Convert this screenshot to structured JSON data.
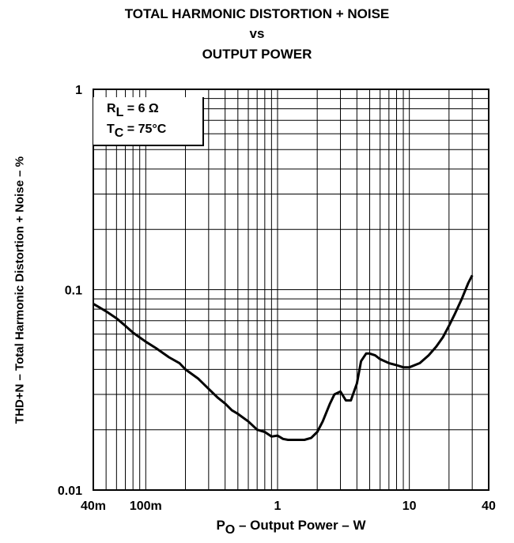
{
  "title_lines": [
    "TOTAL HARMONIC DISTORTION + NOISE",
    "vs",
    "OUTPUT POWER"
  ],
  "legend": {
    "rl_main": "R",
    "rl_sub": "L",
    "rl_rest": " = 6 Ω",
    "tc_main": "T",
    "tc_sub": "C",
    "tc_rest": " = 75°C"
  },
  "axis": {
    "ylabel": "THD+N – Total Harmonic Distortion + Noise – %",
    "xlabel_main": "P",
    "xlabel_sub": "O",
    "xlabel_rest": " – Output Power – W"
  },
  "chart_data": {
    "type": "line",
    "title": "TOTAL HARMONIC DISTORTION + NOISE vs OUTPUT POWER",
    "xlabel": "PO – Output Power – W",
    "ylabel": "THD+N – Total Harmonic Distortion + Noise – %",
    "x_scale": "log",
    "y_scale": "log",
    "xlim": [
      0.04,
      40
    ],
    "ylim": [
      0.01,
      1
    ],
    "grid": true,
    "xticks": [
      {
        "value": 0.04,
        "label": "40m"
      },
      {
        "value": 0.1,
        "label": "100m"
      },
      {
        "value": 1,
        "label": "1"
      },
      {
        "value": 10,
        "label": "10"
      },
      {
        "value": 40,
        "label": "40"
      }
    ],
    "yticks": [
      {
        "value": 0.01,
        "label": "0.01"
      },
      {
        "value": 0.1,
        "label": "0.1"
      },
      {
        "value": 1,
        "label": "1"
      }
    ],
    "legend_placement": "top-left",
    "series": [
      {
        "x": [
          0.04,
          0.05,
          0.06,
          0.07,
          0.08,
          0.1,
          0.12,
          0.15,
          0.18,
          0.2,
          0.25,
          0.3,
          0.35,
          0.4,
          0.45,
          0.5,
          0.6,
          0.7,
          0.8,
          0.9,
          1.0,
          1.1,
          1.2,
          1.4,
          1.6,
          1.8,
          2.0,
          2.2,
          2.5,
          2.7,
          3.0,
          3.3,
          3.6,
          4.0,
          4.3,
          4.7,
          5.0,
          5.5,
          6.0,
          7.0,
          8.0,
          9.0,
          10,
          12,
          14,
          16,
          18,
          20,
          22,
          25,
          28,
          30
        ],
        "y": [
          0.085,
          0.078,
          0.072,
          0.066,
          0.061,
          0.055,
          0.051,
          0.046,
          0.043,
          0.04,
          0.036,
          0.032,
          0.029,
          0.027,
          0.025,
          0.024,
          0.022,
          0.02,
          0.0195,
          0.0185,
          0.0187,
          0.018,
          0.0178,
          0.0178,
          0.0178,
          0.0182,
          0.0195,
          0.022,
          0.027,
          0.03,
          0.031,
          0.028,
          0.028,
          0.034,
          0.044,
          0.048,
          0.048,
          0.047,
          0.045,
          0.043,
          0.042,
          0.041,
          0.041,
          0.043,
          0.047,
          0.052,
          0.058,
          0.066,
          0.075,
          0.09,
          0.108,
          0.118
        ]
      }
    ]
  }
}
